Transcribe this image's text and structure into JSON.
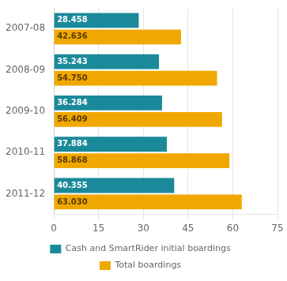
{
  "chart_data": {
    "type": "bar",
    "orientation": "horizontal",
    "categories": [
      "2007-08",
      "2008-09",
      "2009-10",
      "2010-11",
      "2011-12"
    ],
    "series": [
      {
        "name": "Cash and SmartRider initial boardings",
        "color": "#1a8a9a",
        "values": [
          28.458,
          35.243,
          36.284,
          37.884,
          40.355
        ],
        "value_labels": [
          "28.458",
          "35.243",
          "36.284",
          "37.884",
          "40.355"
        ]
      },
      {
        "name": "Total boardings",
        "color": "#f0a800",
        "values": [
          42.636,
          54.75,
          56.409,
          58.868,
          63.03
        ],
        "value_labels": [
          "42.636",
          "54.750",
          "56.409",
          "58.868",
          "63.030"
        ]
      }
    ],
    "xlim": [
      0,
      75
    ],
    "xticks": [
      0,
      15,
      30,
      45,
      60,
      75
    ],
    "grid": true,
    "legend": "bottom",
    "data_labels": true
  }
}
